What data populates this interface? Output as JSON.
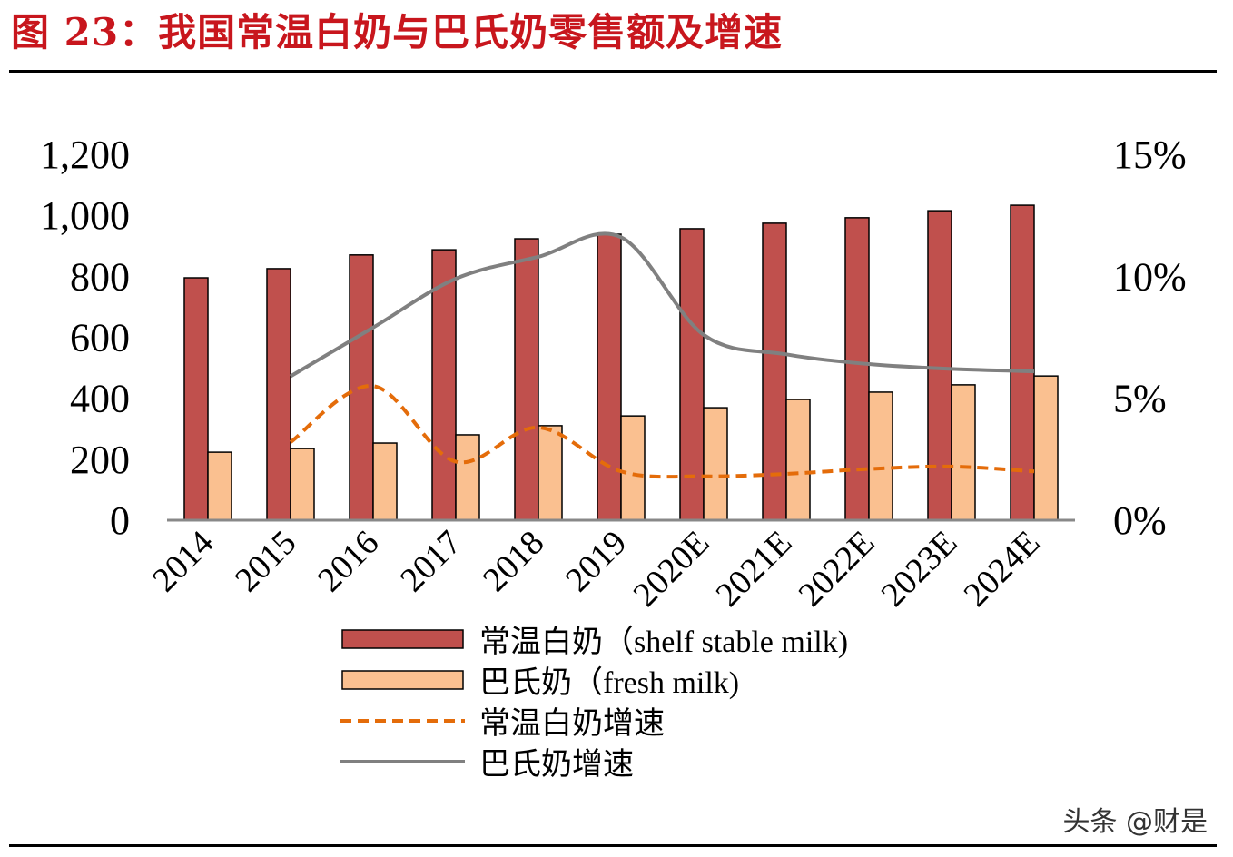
{
  "title": "图 23：我国常温白奶与巴氏奶零售额及增速",
  "watermark": "头条 @财是",
  "chart_data": {
    "type": "bar",
    "title": "",
    "categories": [
      "2014",
      "2015",
      "2016",
      "2017",
      "2018",
      "2019",
      "2020E",
      "2021E",
      "2022E",
      "2023E",
      "2024E"
    ],
    "left_axis": {
      "ylim": [
        0,
        1200
      ],
      "ticks": [
        "0",
        "200",
        "400",
        "600",
        "800",
        "1,000",
        "1,200"
      ]
    },
    "right_axis": {
      "ylim": [
        0,
        15
      ],
      "ticks": [
        "0%",
        "5%",
        "10%",
        "15%"
      ]
    },
    "grid": false,
    "legend_position": "bottom",
    "series": [
      {
        "name": "常温白奶（shelf stable milk)",
        "type": "bar",
        "axis": "left",
        "color": "#c0504d",
        "values": [
          795,
          825,
          870,
          887,
          923,
          938,
          956,
          974,
          992,
          1015,
          1033
        ]
      },
      {
        "name": "巴氏奶（fresh milk)",
        "type": "bar",
        "axis": "left",
        "color": "#fac090",
        "values": [
          223,
          235,
          253,
          280,
          310,
          342,
          369,
          396,
          420,
          444,
          473
        ]
      },
      {
        "name": "常温白奶增速",
        "type": "line",
        "style": "dashed",
        "axis": "right",
        "color": "#e46c0a",
        "values": [
          null,
          3.2,
          5.5,
          2.4,
          3.8,
          2.0,
          1.8,
          1.9,
          2.1,
          2.2,
          2.0
        ]
      },
      {
        "name": "巴氏奶增速",
        "type": "line",
        "style": "solid",
        "axis": "right",
        "color": "#808080",
        "values": [
          null,
          5.9,
          7.9,
          9.9,
          10.8,
          11.6,
          7.6,
          6.8,
          6.4,
          6.2,
          6.1
        ]
      }
    ]
  }
}
